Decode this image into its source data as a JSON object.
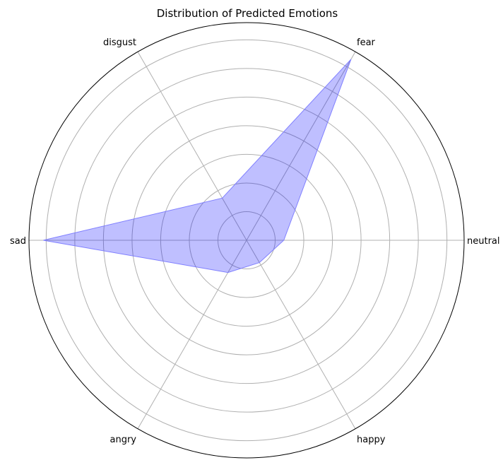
{
  "chart_data": {
    "type": "radar",
    "title": "Distribution of Predicted Emotions",
    "categories": [
      "neutral",
      "fear",
      "disgust",
      "sad",
      "angry",
      "happy"
    ],
    "series": [
      {
        "values": [
          0.65,
          3.65,
          0.85,
          3.55,
          0.65,
          0.45
        ],
        "fill_color": "#0000ff",
        "fill_opacity": 0.25,
        "edge_color": "#8080ff"
      }
    ],
    "rmax": 3.8,
    "rticks": [
      0.5,
      1.0,
      1.5,
      2.0,
      2.5,
      3.0,
      3.5
    ],
    "rtick_labels_shown": false,
    "grid": true,
    "grid_color": "#b0b0b0"
  }
}
